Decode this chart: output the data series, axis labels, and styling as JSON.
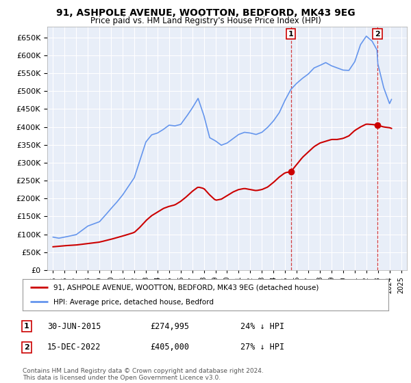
{
  "title": "91, ASHPOLE AVENUE, WOOTTON, BEDFORD, MK43 9EG",
  "subtitle": "Price paid vs. HM Land Registry's House Price Index (HPI)",
  "ylim": [
    0,
    680000
  ],
  "yticks": [
    0,
    50000,
    100000,
    150000,
    200000,
    250000,
    300000,
    350000,
    400000,
    450000,
    500000,
    550000,
    600000,
    650000
  ],
  "xlim_start": 1994.5,
  "xlim_end": 2025.5,
  "legend_line1": "91, ASHPOLE AVENUE, WOOTTON, BEDFORD, MK43 9EG (detached house)",
  "legend_line2": "HPI: Average price, detached house, Bedford",
  "footer": "Contains HM Land Registry data © Crown copyright and database right 2024.\nThis data is licensed under the Open Government Licence v3.0.",
  "hpi_color": "#6495ED",
  "price_color": "#CC0000",
  "background_color": "#E8EEF8",
  "vline1_x": 2015.5,
  "vline2_x": 2022.96,
  "sale_points_x": [
    2015.5,
    2022.96
  ],
  "sale_points_y": [
    274995,
    405000
  ],
  "ann1_date": "30-JUN-2015",
  "ann1_price": "£274,995",
  "ann1_pct": "24% ↓ HPI",
  "ann2_date": "15-DEC-2022",
  "ann2_price": "£405,000",
  "ann2_pct": "27% ↓ HPI"
}
